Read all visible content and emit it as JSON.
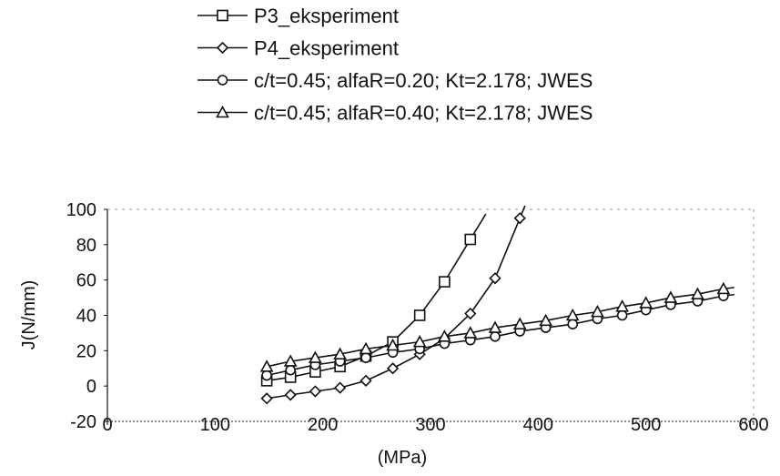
{
  "chart_data": {
    "type": "line",
    "title": "",
    "xlabel": "(MPa)",
    "ylabel": "J(N/mm)",
    "xlim": [
      0,
      600
    ],
    "ylim": [
      -20,
      100
    ],
    "x_ticks": [
      "0",
      "100",
      "200",
      "300",
      "400",
      "500",
      "600"
    ],
    "y_ticks": [
      "-20",
      "0",
      "20",
      "40",
      "60",
      "80",
      "100"
    ],
    "legend_position": "top",
    "grid": false,
    "series": [
      {
        "name": "P3_eksperiment",
        "marker": "square",
        "x": [
          148,
          170,
          193,
          216,
          240,
          265,
          290,
          313,
          337
        ],
        "y": [
          3,
          5,
          8,
          11,
          17,
          25,
          40,
          59,
          83
        ]
      },
      {
        "name": "P4_eksperiment",
        "marker": "diamond",
        "x": [
          148,
          170,
          193,
          216,
          240,
          265,
          290,
          313,
          337,
          360,
          383
        ],
        "y": [
          -7,
          -5,
          -3,
          -1,
          3,
          10,
          18,
          27,
          41,
          61,
          95
        ]
      },
      {
        "name": "c/t=0.45; alfaR=0.20; Kt=2.178; JWES",
        "marker": "circle",
        "x": [
          148,
          170,
          193,
          216,
          240,
          265,
          290,
          313,
          337,
          360,
          383,
          407,
          432,
          455,
          478,
          500,
          523,
          548,
          572
        ],
        "y": [
          6,
          9,
          12,
          14,
          16,
          19,
          21,
          24,
          26,
          28,
          31,
          33,
          35,
          38,
          40,
          43,
          46,
          48,
          51
        ]
      },
      {
        "name": "c/t=0.45; alfaR=0.40; Kt=2.178; JWES",
        "marker": "triangle",
        "x": [
          148,
          170,
          193,
          216,
          240,
          265,
          290,
          313,
          337,
          360,
          383,
          407,
          432,
          455,
          478,
          500,
          523,
          548,
          572
        ],
        "y": [
          11,
          14,
          16,
          18,
          21,
          23,
          25,
          28,
          30,
          33,
          35,
          37,
          40,
          42,
          45,
          47,
          50,
          52,
          55
        ]
      }
    ]
  }
}
